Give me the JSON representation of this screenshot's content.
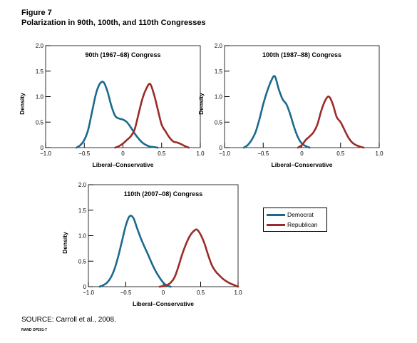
{
  "figure": {
    "label": "Figure 7",
    "title": "Polarization in 90th, 100th, and 110th Congresses",
    "source": "SOURCE: Carroll et al., 2008.",
    "rand_id": "RAND OP201-7"
  },
  "colors": {
    "Democrat": "#1b6a8c",
    "Republican": "#9b2b28"
  },
  "legend": [
    {
      "label": "Democrat",
      "color": "#1b6a8c"
    },
    {
      "label": "Republican",
      "color": "#9b2b28"
    }
  ],
  "chart_data": [
    {
      "type": "line",
      "title": "90th (1967–68) Congress",
      "xlabel": "Liberal–Conservative",
      "ylabel": "Density",
      "xlim": [
        -1.0,
        1.0
      ],
      "ylim": [
        0,
        2.0
      ],
      "xticks": [
        -1.0,
        -0.5,
        0,
        0.5,
        1.0
      ],
      "xtick_labels": [
        "−1.0",
        "−0.5",
        "0",
        "0.5",
        "1.0"
      ],
      "yticks": [
        0,
        0.5,
        1.0,
        1.5,
        2.0
      ],
      "ytick_labels": [
        "0",
        "0.5",
        "1.0",
        "1.5",
        "2.0"
      ],
      "series": [
        {
          "name": "Democrat",
          "color": "#1b6a8c",
          "x": [
            -0.6,
            -0.55,
            -0.5,
            -0.45,
            -0.4,
            -0.35,
            -0.3,
            -0.25,
            -0.2,
            -0.15,
            -0.1,
            -0.05,
            0.0,
            0.05,
            0.1,
            0.15,
            0.2,
            0.25,
            0.3,
            0.35,
            0.4,
            0.45
          ],
          "y": [
            0.0,
            0.05,
            0.15,
            0.35,
            0.7,
            1.05,
            1.25,
            1.28,
            1.1,
            0.82,
            0.62,
            0.57,
            0.55,
            0.5,
            0.4,
            0.28,
            0.18,
            0.1,
            0.05,
            0.02,
            0.01,
            0.0
          ]
        },
        {
          "name": "Republican",
          "color": "#9b2b28",
          "x": [
            -0.1,
            -0.05,
            0.0,
            0.05,
            0.1,
            0.15,
            0.2,
            0.25,
            0.3,
            0.35,
            0.4,
            0.45,
            0.5,
            0.55,
            0.6,
            0.65,
            0.7,
            0.75,
            0.8,
            0.85
          ],
          "y": [
            0.0,
            0.03,
            0.08,
            0.15,
            0.22,
            0.35,
            0.65,
            0.95,
            1.15,
            1.25,
            1.05,
            0.75,
            0.45,
            0.32,
            0.2,
            0.12,
            0.1,
            0.07,
            0.03,
            0.0
          ]
        }
      ]
    },
    {
      "type": "line",
      "title": "100th (1987–88) Congress",
      "xlabel": "Liberal–Conservative",
      "ylabel": "Density",
      "xlim": [
        -1.0,
        1.0
      ],
      "ylim": [
        0,
        2.0
      ],
      "xticks": [
        -1.0,
        -0.5,
        0,
        0.5,
        1.0
      ],
      "xtick_labels": [
        "−1.0",
        "−0.5",
        "0",
        "0.5",
        "1.0"
      ],
      "yticks": [
        0,
        0.5,
        1.0,
        1.5,
        2.0
      ],
      "ytick_labels": [
        "0",
        "0.5",
        "1.0",
        "1.5",
        "2.0"
      ],
      "series": [
        {
          "name": "Democrat",
          "color": "#1b6a8c",
          "x": [
            -0.75,
            -0.7,
            -0.65,
            -0.6,
            -0.55,
            -0.5,
            -0.45,
            -0.4,
            -0.35,
            -0.3,
            -0.25,
            -0.2,
            -0.15,
            -0.1,
            -0.05,
            0.0,
            0.05,
            0.1
          ],
          "y": [
            0.0,
            0.05,
            0.15,
            0.3,
            0.55,
            0.85,
            1.1,
            1.3,
            1.4,
            1.15,
            0.95,
            0.85,
            0.65,
            0.4,
            0.2,
            0.08,
            0.03,
            0.0
          ]
        },
        {
          "name": "Republican",
          "color": "#9b2b28",
          "x": [
            -0.05,
            0.0,
            0.05,
            0.1,
            0.15,
            0.2,
            0.25,
            0.3,
            0.35,
            0.4,
            0.45,
            0.5,
            0.55,
            0.6,
            0.65,
            0.7,
            0.75,
            0.8
          ],
          "y": [
            0.0,
            0.05,
            0.15,
            0.22,
            0.3,
            0.45,
            0.72,
            0.92,
            1.0,
            0.85,
            0.6,
            0.5,
            0.35,
            0.2,
            0.1,
            0.05,
            0.02,
            0.0
          ]
        }
      ]
    },
    {
      "type": "line",
      "title": "110th (2007–08) Congress",
      "xlabel": "Liberal–Conservative",
      "ylabel": "Density",
      "xlim": [
        -1.0,
        1.0
      ],
      "ylim": [
        0,
        2.0
      ],
      "xticks": [
        -1.0,
        -0.5,
        0,
        0.5,
        1.0
      ],
      "xtick_labels": [
        "−1.0",
        "−0.5",
        "0",
        "0.5",
        "1.0"
      ],
      "yticks": [
        0,
        0.5,
        1.0,
        1.5,
        2.0
      ],
      "ytick_labels": [
        "0",
        "0.5",
        "1.0",
        "1.5",
        "2.0"
      ],
      "series": [
        {
          "name": "Democrat",
          "color": "#1b6a8c",
          "x": [
            -0.85,
            -0.8,
            -0.75,
            -0.7,
            -0.65,
            -0.6,
            -0.55,
            -0.5,
            -0.45,
            -0.4,
            -0.35,
            -0.3,
            -0.25,
            -0.2,
            -0.15,
            -0.1,
            -0.05,
            0.0,
            0.05,
            0.1
          ],
          "y": [
            0.0,
            0.03,
            0.08,
            0.18,
            0.35,
            0.6,
            0.9,
            1.2,
            1.38,
            1.35,
            1.15,
            0.95,
            0.78,
            0.62,
            0.45,
            0.3,
            0.18,
            0.08,
            0.02,
            0.0
          ]
        },
        {
          "name": "Republican",
          "color": "#9b2b28",
          "x": [
            -0.05,
            0.0,
            0.05,
            0.1,
            0.15,
            0.2,
            0.25,
            0.3,
            0.35,
            0.4,
            0.45,
            0.5,
            0.55,
            0.6,
            0.65,
            0.7,
            0.75,
            0.8,
            0.85,
            0.9,
            0.95,
            1.0
          ],
          "y": [
            0.0,
            0.01,
            0.03,
            0.08,
            0.18,
            0.38,
            0.62,
            0.82,
            0.98,
            1.08,
            1.12,
            1.02,
            0.85,
            0.62,
            0.42,
            0.3,
            0.22,
            0.15,
            0.1,
            0.06,
            0.03,
            0.0
          ]
        }
      ]
    }
  ]
}
